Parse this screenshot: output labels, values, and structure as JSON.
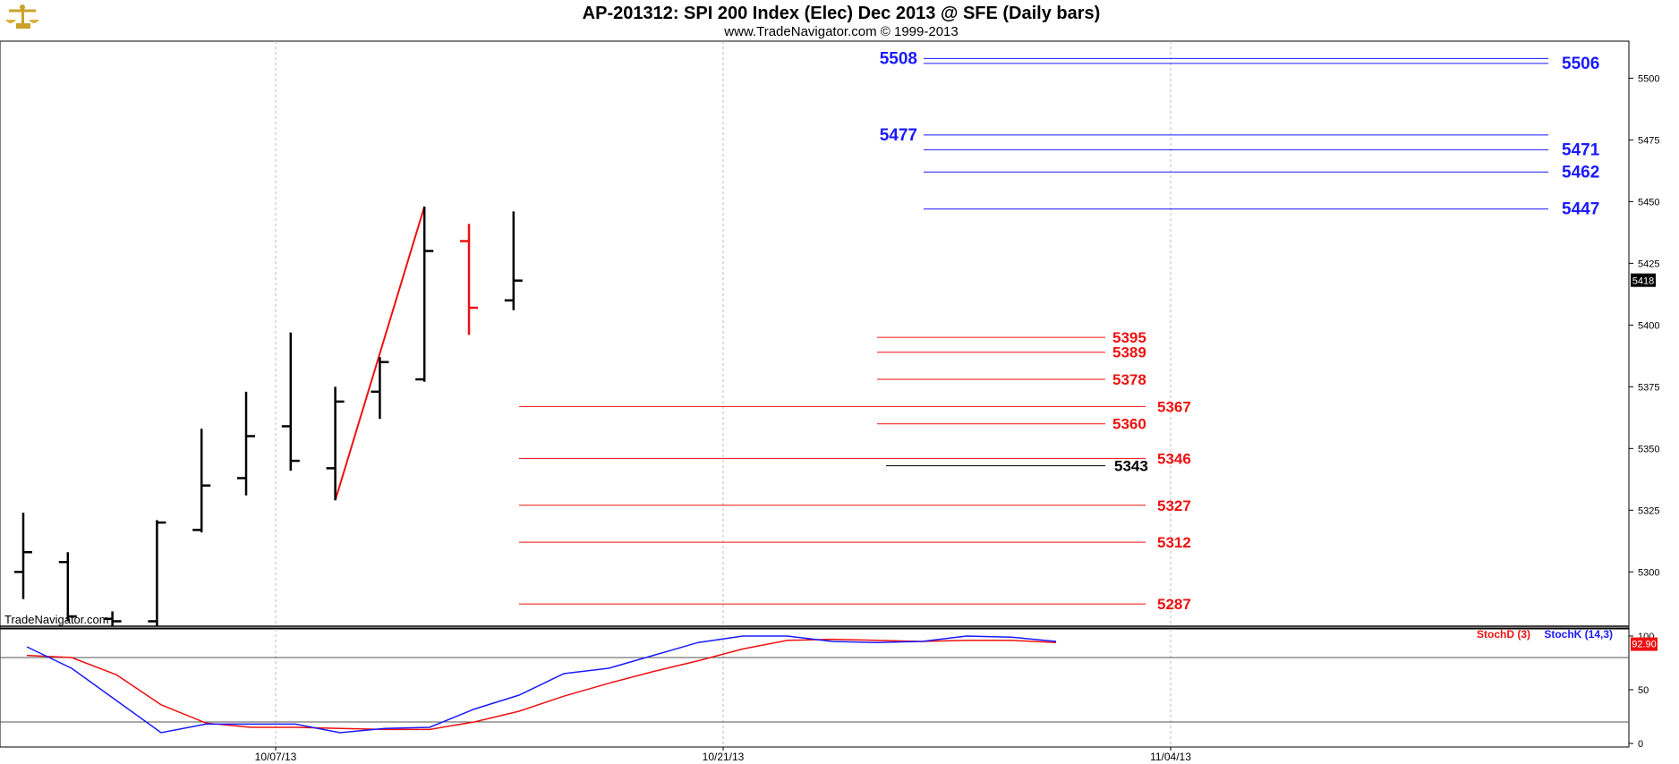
{
  "header": {
    "title": "AP-201312:  SPI 200 Index (Elec) Dec 2013 @ SFE  (Daily bars)",
    "subtitle": "www.TradeNavigator.com © 1999-2013",
    "watermark": "TradeNavigator.com",
    "logo_icon": "scales-of-justice-icon"
  },
  "chart_data": [
    {
      "type": "ohlc",
      "ylim": [
        5278,
        5515
      ],
      "y_ticks": [
        5300,
        5325,
        5350,
        5375,
        5400,
        5425,
        5450,
        5475,
        5500
      ],
      "x_tick_labels": [
        "10/07/13",
        "10/21/13",
        "11/04/13"
      ],
      "last_price": "5418",
      "bars": [
        {
          "o": 5300,
          "h": 5324,
          "l": 5289,
          "c": 5308,
          "color": "#000000"
        },
        {
          "o": 5304,
          "h": 5308,
          "l": 5280,
          "c": 5282,
          "color": "#000000"
        },
        {
          "o": 5281,
          "h": 5284,
          "l": 5278,
          "c": 5280,
          "color": "#000000"
        },
        {
          "o": 5280,
          "h": 5321,
          "l": 5278,
          "c": 5320,
          "color": "#000000"
        },
        {
          "o": 5317,
          "h": 5358,
          "l": 5316,
          "c": 5335,
          "color": "#000000"
        },
        {
          "o": 5338,
          "h": 5373,
          "l": 5331,
          "c": 5355,
          "color": "#000000"
        },
        {
          "o": 5359,
          "h": 5397,
          "l": 5341,
          "c": 5345,
          "color": "#000000"
        },
        {
          "o": 5342,
          "h": 5375,
          "l": 5329,
          "c": 5369,
          "color": "#000000"
        },
        {
          "o": 5373,
          "h": 5387,
          "l": 5362,
          "c": 5385,
          "color": "#000000"
        },
        {
          "o": 5378,
          "h": 5448,
          "l": 5377,
          "c": 5430,
          "color": "#000000"
        },
        {
          "o": 5434,
          "h": 5441,
          "l": 5396,
          "c": 5407,
          "color": "#ee1111"
        },
        {
          "o": 5410,
          "h": 5446,
          "l": 5406,
          "c": 5418,
          "color": "#000000"
        }
      ],
      "trend_line": {
        "from": 5329,
        "to": 5448
      },
      "levels": [
        {
          "label": "5508",
          "value": 5508,
          "color": "#1a1aff"
        },
        {
          "label": "5506",
          "value": 5506,
          "color": "#1a1aff"
        },
        {
          "label": "5477",
          "value": 5477,
          "color": "#1a1aff"
        },
        {
          "label": "5471",
          "value": 5471,
          "color": "#1a1aff"
        },
        {
          "label": "5462",
          "value": 5462,
          "color": "#1a1aff"
        },
        {
          "label": "5447",
          "value": 5447,
          "color": "#1a1aff"
        },
        {
          "label": "5395",
          "value": 5395,
          "color": "#ee1111"
        },
        {
          "label": "5389",
          "value": 5389,
          "color": "#ee1111"
        },
        {
          "label": "5378",
          "value": 5378,
          "color": "#ee1111"
        },
        {
          "label": "5367",
          "value": 5367,
          "color": "#ee1111"
        },
        {
          "label": "5360",
          "value": 5360,
          "color": "#ee1111"
        },
        {
          "label": "5346",
          "value": 5346,
          "color": "#ee1111"
        },
        {
          "label": "5343",
          "value": 5343,
          "color": "#000000"
        },
        {
          "label": "5327",
          "value": 5327,
          "color": "#ee1111"
        },
        {
          "label": "5312",
          "value": 5312,
          "color": "#ee1111"
        },
        {
          "label": "5287",
          "value": 5287,
          "color": "#ee1111"
        }
      ]
    },
    {
      "type": "line",
      "ylim": [
        0,
        100
      ],
      "y_ticks": [
        0,
        50,
        100
      ],
      "reference_lines": [
        20,
        80
      ],
      "last_value": "92.90",
      "series": [
        {
          "name": "StochD (3)",
          "color": "#ee1111",
          "values": [
            82,
            80,
            64,
            36,
            19,
            15,
            15,
            14,
            13,
            13,
            20,
            30,
            44,
            56,
            67,
            77,
            88,
            96,
            97,
            96,
            95,
            96,
            96,
            94
          ]
        },
        {
          "name": "StochK (14,3)",
          "color": "#1a1aff",
          "values": [
            90,
            70,
            40,
            10,
            18,
            18,
            18,
            10,
            14,
            15,
            32,
            45,
            65,
            70,
            82,
            94,
            100,
            102,
            95,
            94,
            95,
            100,
            99,
            95
          ]
        }
      ]
    }
  ]
}
